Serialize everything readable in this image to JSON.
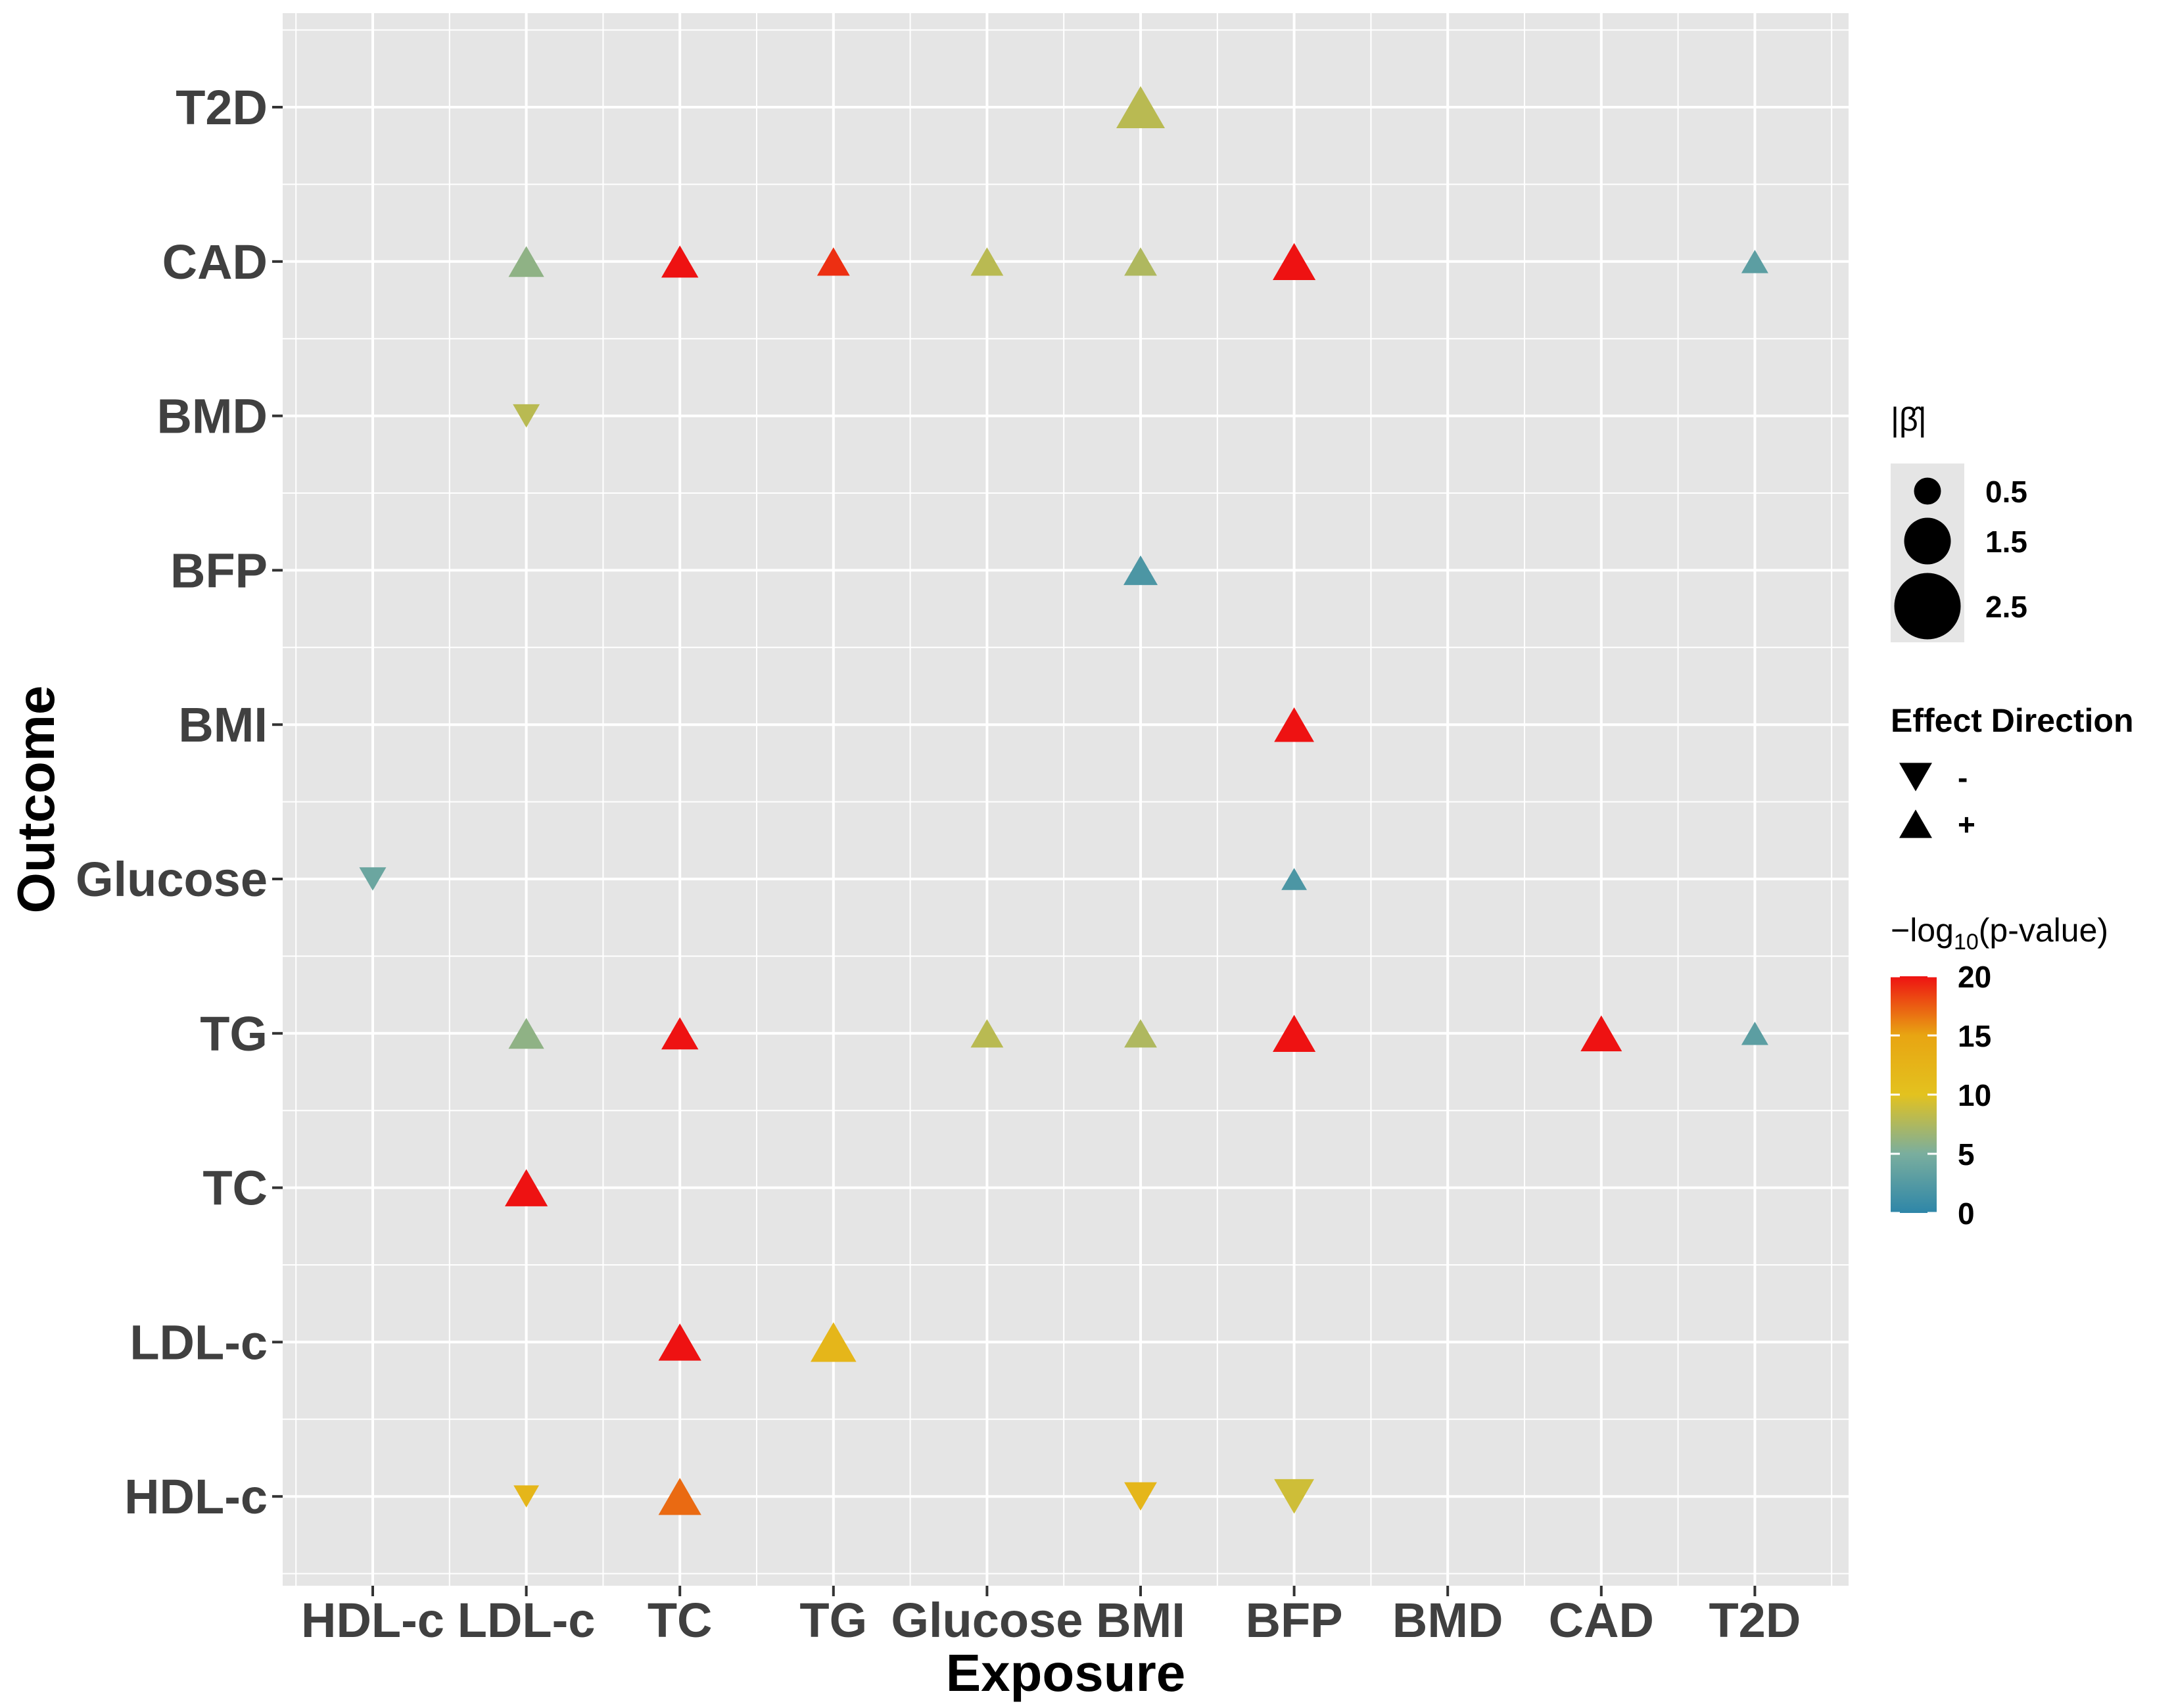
{
  "chart_data": {
    "type": "scatter",
    "xlabel": "Exposure",
    "ylabel": "Outcome",
    "x_categories": [
      "HDL-c",
      "LDL-c",
      "TC",
      "TG",
      "Glucose",
      "BMI",
      "BFP",
      "BMD",
      "CAD",
      "T2D"
    ],
    "y_categories": [
      "HDL-c",
      "LDL-c",
      "TC",
      "TG",
      "Glucose",
      "BMI",
      "BFP",
      "BMD",
      "CAD",
      "T2D"
    ],
    "points": [
      {
        "exposure": "BMI",
        "outcome": "T2D",
        "beta_abs": 2.0,
        "direction": "+",
        "neg_log10_p": 8
      },
      {
        "exposure": "LDL-c",
        "outcome": "CAD",
        "beta_abs": 1.1,
        "direction": "+",
        "neg_log10_p": 6
      },
      {
        "exposure": "TC",
        "outcome": "CAD",
        "beta_abs": 1.2,
        "direction": "+",
        "neg_log10_p": 20
      },
      {
        "exposure": "TG",
        "outcome": "CAD",
        "beta_abs": 0.9,
        "direction": "+",
        "neg_log10_p": 19
      },
      {
        "exposure": "Glucose",
        "outcome": "CAD",
        "beta_abs": 0.9,
        "direction": "+",
        "neg_log10_p": 8
      },
      {
        "exposure": "BMI",
        "outcome": "CAD",
        "beta_abs": 0.9,
        "direction": "+",
        "neg_log10_p": 7.5
      },
      {
        "exposure": "BFP",
        "outcome": "CAD",
        "beta_abs": 1.6,
        "direction": "+",
        "neg_log10_p": 20
      },
      {
        "exposure": "T2D",
        "outcome": "CAD",
        "beta_abs": 0.5,
        "direction": "+",
        "neg_log10_p": 3
      },
      {
        "exposure": "LDL-c",
        "outcome": "BMD",
        "beta_abs": 0.5,
        "direction": "-",
        "neg_log10_p": 8
      },
      {
        "exposure": "BMI",
        "outcome": "BFP",
        "beta_abs": 1.0,
        "direction": "+",
        "neg_log10_p": 2
      },
      {
        "exposure": "BFP",
        "outcome": "BMI",
        "beta_abs": 1.4,
        "direction": "+",
        "neg_log10_p": 20
      },
      {
        "exposure": "HDL-c",
        "outcome": "Glucose",
        "beta_abs": 0.5,
        "direction": "-",
        "neg_log10_p": 4
      },
      {
        "exposure": "BFP",
        "outcome": "Glucose",
        "beta_abs": 0.4,
        "direction": "+",
        "neg_log10_p": 2
      },
      {
        "exposure": "LDL-c",
        "outcome": "TG",
        "beta_abs": 1.1,
        "direction": "+",
        "neg_log10_p": 6
      },
      {
        "exposure": "TC",
        "outcome": "TG",
        "beta_abs": 1.2,
        "direction": "+",
        "neg_log10_p": 20
      },
      {
        "exposure": "Glucose",
        "outcome": "TG",
        "beta_abs": 0.9,
        "direction": "+",
        "neg_log10_p": 8
      },
      {
        "exposure": "BMI",
        "outcome": "TG",
        "beta_abs": 0.9,
        "direction": "+",
        "neg_log10_p": 7.5
      },
      {
        "exposure": "BFP",
        "outcome": "TG",
        "beta_abs": 1.6,
        "direction": "+",
        "neg_log10_p": 20
      },
      {
        "exposure": "CAD",
        "outcome": "TG",
        "beta_abs": 1.5,
        "direction": "+",
        "neg_log10_p": 20
      },
      {
        "exposure": "T2D",
        "outcome": "TG",
        "beta_abs": 0.5,
        "direction": "+",
        "neg_log10_p": 3
      },
      {
        "exposure": "LDL-c",
        "outcome": "TC",
        "beta_abs": 1.6,
        "direction": "+",
        "neg_log10_p": 20
      },
      {
        "exposure": "TC",
        "outcome": "LDL-c",
        "beta_abs": 1.6,
        "direction": "+",
        "neg_log10_p": 20
      },
      {
        "exposure": "TG",
        "outcome": "LDL-c",
        "beta_abs": 1.8,
        "direction": "+",
        "neg_log10_p": 12
      },
      {
        "exposure": "LDL-c",
        "outcome": "HDL-c",
        "beta_abs": 0.4,
        "direction": "-",
        "neg_log10_p": 12
      },
      {
        "exposure": "TC",
        "outcome": "HDL-c",
        "beta_abs": 1.6,
        "direction": "+",
        "neg_log10_p": 17
      },
      {
        "exposure": "BMI",
        "outcome": "HDL-c",
        "beta_abs": 0.9,
        "direction": "-",
        "neg_log10_p": 12
      },
      {
        "exposure": "BFP",
        "outcome": "HDL-c",
        "beta_abs": 1.4,
        "direction": "-",
        "neg_log10_p": 9
      }
    ],
    "legend": {
      "size": {
        "title": "|β̂|",
        "breaks": [
          0.5,
          1.5,
          2.5
        ],
        "labels": [
          "0.5",
          "1.5",
          "2.5"
        ]
      },
      "shape": {
        "title": "Effect Direction",
        "labels": [
          "-",
          "+"
        ]
      },
      "color": {
        "title_prefix": "−log",
        "title_sub": "10",
        "title_suffix": "(p-value)",
        "limits": [
          0,
          20
        ],
        "breaks": [
          0,
          5,
          10,
          15,
          20
        ],
        "labels": [
          "0",
          "5",
          "10",
          "15",
          "20"
        ],
        "gradient": [
          "#2E86A8",
          "#7AAE9E",
          "#E3C21F",
          "#E8A512",
          "#EE1212"
        ]
      }
    },
    "colors": {
      "panel_bg": "#E5E5E5",
      "grid": "#FFFFFF",
      "tick_text": "#404040"
    }
  }
}
